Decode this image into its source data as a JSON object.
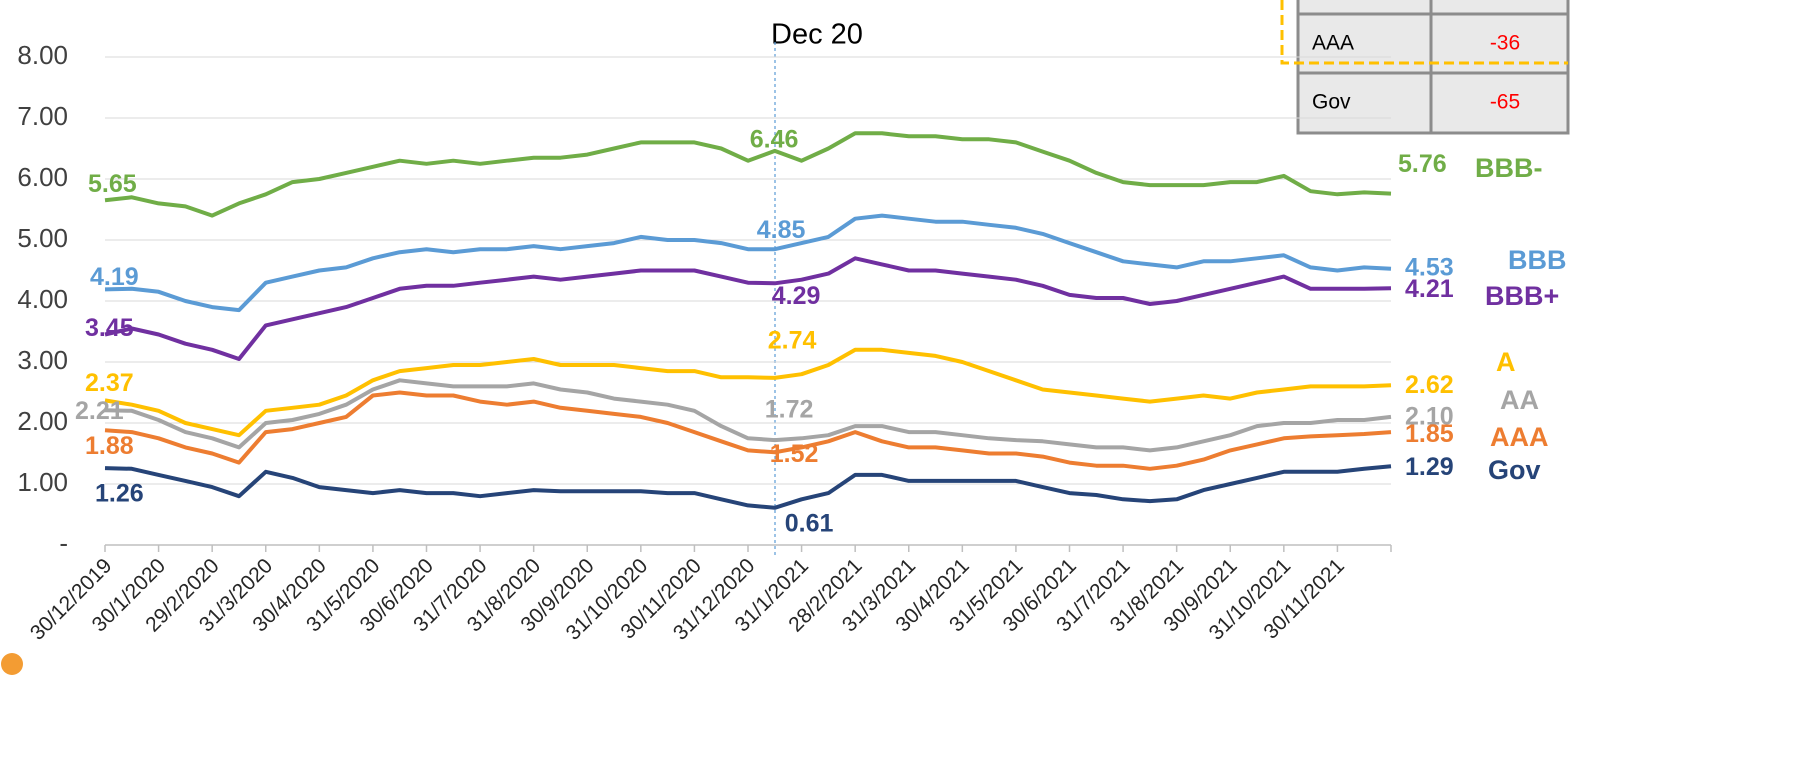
{
  "chart_data": {
    "type": "line",
    "annotation": "Dec 20",
    "categories": [
      "30/12/2019",
      null,
      "30/1/2020",
      null,
      "29/2/2020",
      null,
      "31/3/2020",
      null,
      "30/4/2020",
      null,
      "31/5/2020",
      null,
      "30/6/2020",
      null,
      "31/7/2020",
      null,
      "31/8/2020",
      null,
      "30/9/2020",
      null,
      "31/10/2020",
      null,
      "30/11/2020",
      null,
      "31/12/2020",
      null,
      "31/1/2021",
      null,
      "28/2/2021",
      null,
      "31/3/2021",
      null,
      "30/4/2021",
      null,
      "31/5/2021",
      null,
      "30/6/2021",
      null,
      "31/7/2021",
      null,
      "31/8/2021",
      null,
      "30/9/2021",
      null,
      "31/10/2021",
      null,
      "30/11/2021",
      null,
      null
    ],
    "series": [
      {
        "name": "BBB-",
        "color": "#70ad47",
        "values": [
          5.65,
          5.7,
          5.6,
          5.55,
          5.4,
          5.6,
          5.75,
          5.95,
          6.0,
          6.1,
          6.2,
          6.3,
          6.25,
          6.3,
          6.25,
          6.3,
          6.35,
          6.35,
          6.4,
          6.5,
          6.6,
          6.6,
          6.6,
          6.5,
          6.3,
          6.46,
          6.3,
          6.5,
          6.75,
          6.75,
          6.7,
          6.7,
          6.65,
          6.65,
          6.6,
          6.45,
          6.3,
          6.1,
          5.95,
          5.9,
          5.9,
          5.9,
          5.95,
          5.95,
          6.05,
          5.8,
          5.75,
          5.78,
          5.76
        ],
        "value_labels": [
          "5.65",
          null,
          null,
          null,
          null,
          null,
          null,
          null,
          null,
          null,
          null,
          null,
          null,
          null,
          null,
          null,
          null,
          null,
          null,
          null,
          null,
          null,
          null,
          null,
          null,
          "6.46",
          null,
          null,
          null,
          null,
          null,
          null,
          null,
          null,
          null,
          null,
          null,
          null,
          null,
          null,
          null,
          null,
          null,
          null,
          null,
          null,
          null,
          null,
          "5.76"
        ]
      },
      {
        "name": "BBB",
        "color": "#5b9bd5",
        "values": [
          4.19,
          4.2,
          4.15,
          4.0,
          3.9,
          3.85,
          4.3,
          4.4,
          4.5,
          4.55,
          4.7,
          4.8,
          4.85,
          4.8,
          4.85,
          4.85,
          4.9,
          4.85,
          4.9,
          4.95,
          5.05,
          5.0,
          5.0,
          4.95,
          4.85,
          4.85,
          4.95,
          5.05,
          5.35,
          5.4,
          5.35,
          5.3,
          5.3,
          5.25,
          5.2,
          5.1,
          4.95,
          4.8,
          4.65,
          4.6,
          4.55,
          4.65,
          4.65,
          4.7,
          4.75,
          4.55,
          4.5,
          4.55,
          4.53
        ],
        "value_labels": [
          "4.19",
          null,
          null,
          null,
          null,
          null,
          null,
          null,
          null,
          null,
          null,
          null,
          null,
          null,
          null,
          null,
          null,
          null,
          null,
          null,
          null,
          null,
          null,
          null,
          null,
          "4.85",
          null,
          null,
          null,
          null,
          null,
          null,
          null,
          null,
          null,
          null,
          null,
          null,
          null,
          null,
          null,
          null,
          null,
          null,
          null,
          null,
          null,
          null,
          "4.53"
        ]
      },
      {
        "name": "BBB+",
        "color": "#7030a0",
        "values": [
          3.45,
          3.55,
          3.45,
          3.3,
          3.2,
          3.05,
          3.6,
          3.7,
          3.8,
          3.9,
          4.05,
          4.2,
          4.25,
          4.25,
          4.3,
          4.35,
          4.4,
          4.35,
          4.4,
          4.45,
          4.5,
          4.5,
          4.5,
          4.4,
          4.3,
          4.29,
          4.35,
          4.45,
          4.7,
          4.6,
          4.5,
          4.5,
          4.45,
          4.4,
          4.35,
          4.25,
          4.1,
          4.05,
          4.05,
          3.95,
          4.0,
          4.1,
          4.2,
          4.3,
          4.4,
          4.2,
          4.2,
          4.2,
          4.21
        ],
        "value_labels": [
          "3.45",
          null,
          null,
          null,
          null,
          null,
          null,
          null,
          null,
          null,
          null,
          null,
          null,
          null,
          null,
          null,
          null,
          null,
          null,
          null,
          null,
          null,
          null,
          null,
          null,
          "4.29",
          null,
          null,
          null,
          null,
          null,
          null,
          null,
          null,
          null,
          null,
          null,
          null,
          null,
          null,
          null,
          null,
          null,
          null,
          null,
          null,
          null,
          null,
          "4.21"
        ]
      },
      {
        "name": "A",
        "color": "#ffc000",
        "values": [
          2.37,
          2.3,
          2.2,
          2.0,
          1.9,
          1.8,
          2.2,
          2.25,
          2.3,
          2.45,
          2.7,
          2.85,
          2.9,
          2.95,
          2.95,
          3.0,
          3.05,
          2.95,
          2.95,
          2.95,
          2.9,
          2.85,
          2.85,
          2.75,
          2.75,
          2.74,
          2.8,
          2.95,
          3.2,
          3.2,
          3.15,
          3.1,
          3.0,
          2.85,
          2.7,
          2.55,
          2.5,
          2.45,
          2.4,
          2.35,
          2.4,
          2.45,
          2.4,
          2.5,
          2.55,
          2.6,
          2.6,
          2.6,
          2.62
        ],
        "value_labels": [
          "2.37",
          null,
          null,
          null,
          null,
          null,
          null,
          null,
          null,
          null,
          null,
          null,
          null,
          null,
          null,
          null,
          null,
          null,
          null,
          null,
          null,
          null,
          null,
          null,
          null,
          "2.74",
          null,
          null,
          null,
          null,
          null,
          null,
          null,
          null,
          null,
          null,
          null,
          null,
          null,
          null,
          null,
          null,
          null,
          null,
          null,
          null,
          null,
          null,
          "2.62"
        ]
      },
      {
        "name": "AA",
        "color": "#a5a5a5",
        "values": [
          2.21,
          2.2,
          2.05,
          1.85,
          1.75,
          1.6,
          2.0,
          2.05,
          2.15,
          2.3,
          2.55,
          2.7,
          2.65,
          2.6,
          2.6,
          2.6,
          2.65,
          2.55,
          2.5,
          2.4,
          2.35,
          2.3,
          2.2,
          1.95,
          1.75,
          1.72,
          1.75,
          1.8,
          1.95,
          1.95,
          1.85,
          1.85,
          1.8,
          1.75,
          1.72,
          1.7,
          1.65,
          1.6,
          1.6,
          1.55,
          1.6,
          1.7,
          1.8,
          1.95,
          2.0,
          2.0,
          2.05,
          2.05,
          2.1
        ],
        "value_labels": [
          "2.21",
          null,
          null,
          null,
          null,
          null,
          null,
          null,
          null,
          null,
          null,
          null,
          null,
          null,
          null,
          null,
          null,
          null,
          null,
          null,
          null,
          null,
          null,
          null,
          null,
          "1.72",
          null,
          null,
          null,
          null,
          null,
          null,
          null,
          null,
          null,
          null,
          null,
          null,
          null,
          null,
          null,
          null,
          null,
          null,
          null,
          null,
          null,
          null,
          "2.10"
        ]
      },
      {
        "name": "AAA",
        "color": "#ed7d31",
        "values": [
          1.88,
          1.85,
          1.75,
          1.6,
          1.5,
          1.35,
          1.85,
          1.9,
          2.0,
          2.1,
          2.45,
          2.5,
          2.45,
          2.45,
          2.35,
          2.3,
          2.35,
          2.25,
          2.2,
          2.15,
          2.1,
          2.0,
          1.85,
          1.7,
          1.55,
          1.52,
          1.6,
          1.7,
          1.85,
          1.7,
          1.6,
          1.6,
          1.55,
          1.5,
          1.5,
          1.45,
          1.35,
          1.3,
          1.3,
          1.25,
          1.3,
          1.4,
          1.55,
          1.65,
          1.75,
          1.78,
          1.8,
          1.82,
          1.85
        ],
        "value_labels": [
          "1.88",
          null,
          null,
          null,
          null,
          null,
          null,
          null,
          null,
          null,
          null,
          null,
          null,
          null,
          null,
          null,
          null,
          null,
          null,
          null,
          null,
          null,
          null,
          null,
          null,
          "1.52",
          null,
          null,
          null,
          null,
          null,
          null,
          null,
          null,
          null,
          null,
          null,
          null,
          null,
          null,
          null,
          null,
          null,
          null,
          null,
          null,
          null,
          null,
          "1.85"
        ]
      },
      {
        "name": "Gov",
        "color": "#264478",
        "values": [
          1.26,
          1.25,
          1.15,
          1.05,
          0.95,
          0.8,
          1.2,
          1.1,
          0.95,
          0.9,
          0.85,
          0.9,
          0.85,
          0.85,
          0.8,
          0.85,
          0.9,
          0.88,
          0.88,
          0.88,
          0.88,
          0.85,
          0.85,
          0.75,
          0.65,
          0.61,
          0.75,
          0.85,
          1.15,
          1.15,
          1.05,
          1.05,
          1.05,
          1.05,
          1.05,
          0.95,
          0.85,
          0.82,
          0.75,
          0.72,
          0.75,
          0.9,
          1.0,
          1.1,
          1.2,
          1.2,
          1.2,
          1.25,
          1.29
        ],
        "value_labels": [
          "1.26",
          null,
          null,
          null,
          null,
          null,
          null,
          null,
          null,
          null,
          null,
          null,
          null,
          null,
          null,
          null,
          null,
          null,
          null,
          null,
          null,
          null,
          null,
          null,
          null,
          "0.61",
          null,
          null,
          null,
          null,
          null,
          null,
          null,
          null,
          null,
          null,
          null,
          null,
          null,
          null,
          null,
          null,
          null,
          null,
          null,
          null,
          null,
          null,
          "1.29"
        ]
      }
    ],
    "ylim": [
      0,
      8
    ],
    "yticks": [
      {
        "value": 0,
        "label": "-"
      },
      {
        "value": 1,
        "label": "1.00"
      },
      {
        "value": 2,
        "label": "2.00"
      },
      {
        "value": 3,
        "label": "3.00"
      },
      {
        "value": 4,
        "label": "4.00"
      },
      {
        "value": 5,
        "label": "5.00"
      },
      {
        "value": 6,
        "label": "6.00"
      },
      {
        "value": 7,
        "label": "7.00"
      },
      {
        "value": 8,
        "label": "8.00"
      }
    ],
    "grid": true
  },
  "table": {
    "rows": [
      [
        "AAA",
        "-36"
      ],
      [
        "Gov",
        "-65"
      ]
    ]
  }
}
